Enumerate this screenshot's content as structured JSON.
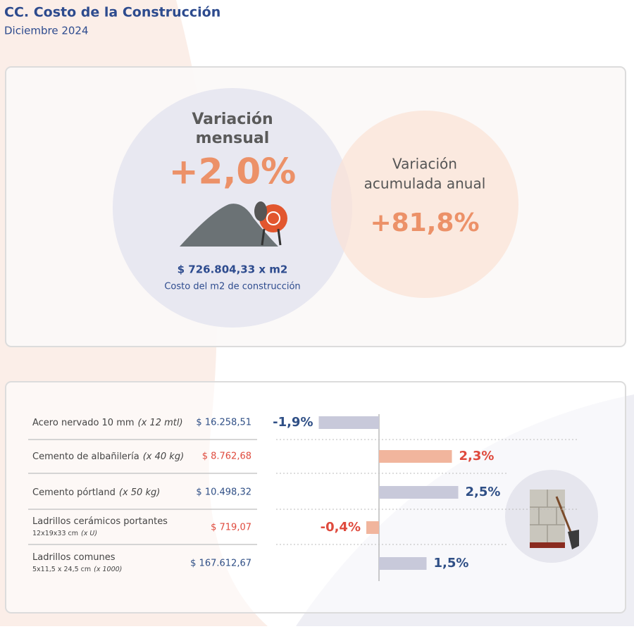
{
  "header": {
    "title": "CC. Costo de la Construcción",
    "subtitle": "Diciembre 2024"
  },
  "summary": {
    "monthly_label": [
      "Variación",
      "mensual"
    ],
    "monthly_value": "+2,0%",
    "cost_value": "$ 726.804,33 x m2",
    "cost_label": "Costo del m2 de construcción",
    "annual_label": [
      "Variación",
      "acumulada anual"
    ],
    "annual_value": "+81,8%"
  },
  "items": [
    {
      "name": "Acero nervado 10 mm",
      "unit": "(x 12 mtl)",
      "price": "$ 16.258,51"
    },
    {
      "name": "Cemento de albañilería",
      "unit": "(x 40 kg)",
      "price": "$ 8.762,68"
    },
    {
      "name": "Cemento pórtland",
      "unit": "(x 50 kg)",
      "price": "$ 10.498,32"
    },
    {
      "name": "Ladrillos cerámicos portantes",
      "size": "12x19x33 cm",
      "unit": "(x U)",
      "price": "$ 719,07"
    },
    {
      "name": "Ladrillos comunes",
      "size": "5x11,5 x 24,5 cm",
      "unit": "(x 1000)",
      "price": "$ 167.612,67"
    }
  ],
  "chart_data": {
    "type": "bar",
    "orientation": "horizontal",
    "values": [
      -1.9,
      2.3,
      2.5,
      -0.4,
      1.5
    ],
    "value_labels": [
      "-1,9%",
      "2,3%",
      "2,5%",
      "-0,4%",
      "1,5%"
    ],
    "colors": [
      "#c8c9da",
      "#f1b59d",
      "#c8c9da",
      "#f1b59d",
      "#c8c9da"
    ],
    "label_colors": [
      "#2f4f86",
      "#df4a3d",
      "#2f4f86",
      "#df4a3d",
      "#2f4f86"
    ]
  }
}
